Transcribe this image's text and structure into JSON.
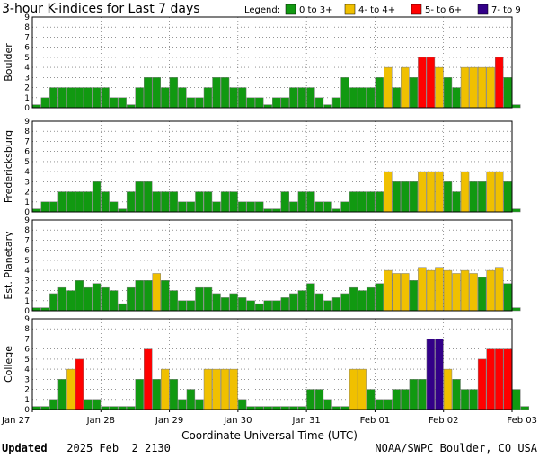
{
  "chart_data": {
    "type": "bar",
    "title": "3-hour K-indices for Last 7 days",
    "xlabel": "Coordinate Universal Time (UTC)",
    "ylim": [
      0,
      9
    ],
    "y_ticks": [
      "0",
      "1",
      "2",
      "3",
      "4",
      "5",
      "6",
      "7",
      "8",
      "9"
    ],
    "x_tick_labels": [
      "Jan 27",
      "Jan 28",
      "Jan 29",
      "Jan 30",
      "Jan 31",
      "Feb 01",
      "Feb 02",
      "Feb 03"
    ],
    "interval_hours": 3,
    "grid": true,
    "legend_position": "top-right",
    "legend": {
      "label": "Legend:",
      "entries": [
        {
          "label": "0 to 3+",
          "color": "#119911"
        },
        {
          "label": "4- to 4+",
          "color": "#f0c000"
        },
        {
          "label": "5- to 6+",
          "color": "#ff0000"
        },
        {
          "label": "7- to 9",
          "color": "#330088"
        }
      ]
    },
    "panels": [
      {
        "name": "Boulder",
        "values": [
          0.3,
          1,
          2,
          2,
          2,
          2,
          2,
          2,
          2,
          1,
          1,
          0.3,
          2,
          3,
          3,
          2,
          3,
          2,
          1,
          1,
          2,
          3,
          3,
          2,
          2,
          1,
          1,
          0.3,
          1,
          1,
          2,
          2,
          2,
          1,
          0.3,
          1,
          3,
          2,
          2,
          2,
          3,
          4,
          2,
          4,
          3,
          5,
          5,
          4,
          3,
          2,
          4,
          4,
          4,
          4,
          5,
          3,
          0.3
        ]
      },
      {
        "name": "Fredericksburg",
        "values": [
          0.3,
          1,
          1,
          2,
          2,
          2,
          2,
          3,
          2,
          1,
          0.3,
          2,
          3,
          3,
          2,
          2,
          2,
          1,
          1,
          2,
          2,
          1,
          2,
          2,
          1,
          1,
          1,
          0.3,
          0.3,
          2,
          1,
          2,
          2,
          1,
          1,
          0.3,
          1,
          2,
          2,
          2,
          2,
          4,
          3,
          3,
          3,
          4,
          4,
          4,
          3,
          2,
          4,
          3,
          3,
          4,
          4,
          3,
          0.3
        ]
      },
      {
        "name": "Est. Planetary",
        "values": [
          0.3,
          0.3,
          1.7,
          2.3,
          2,
          3,
          2.3,
          2.7,
          2.3,
          2,
          0.7,
          2.3,
          3,
          3,
          3.7,
          3,
          2,
          1,
          1,
          2.3,
          2.3,
          1.7,
          1.3,
          1.7,
          1.3,
          1,
          0.7,
          1,
          1,
          1.3,
          1.7,
          2,
          2.7,
          1.7,
          1,
          1.3,
          1.7,
          2.3,
          2,
          2.3,
          2.7,
          4,
          3.7,
          3.7,
          3,
          4.3,
          4,
          4.3,
          4,
          3.7,
          4,
          3.7,
          3.3,
          4,
          4.3,
          2.7,
          0.3
        ]
      },
      {
        "name": "College",
        "values": [
          0.3,
          0.3,
          1,
          3,
          4,
          5,
          1,
          1,
          0.3,
          0.3,
          0.3,
          0.3,
          3,
          6,
          3,
          4,
          3,
          1,
          2,
          1,
          4,
          4,
          4,
          4,
          1,
          0.3,
          0.3,
          0.3,
          0.3,
          0.3,
          0.3,
          0.3,
          2,
          2,
          1,
          0.3,
          0.3,
          4,
          4,
          2,
          1,
          1,
          2,
          2,
          3,
          3,
          7,
          7,
          4,
          3,
          2,
          2,
          5,
          6,
          6,
          6,
          2,
          0.3
        ]
      }
    ]
  },
  "footer": {
    "updated_label": "Updated",
    "updated_value": "2025 Feb  2 2130",
    "credit": "NOAA/SWPC Boulder, CO USA"
  }
}
